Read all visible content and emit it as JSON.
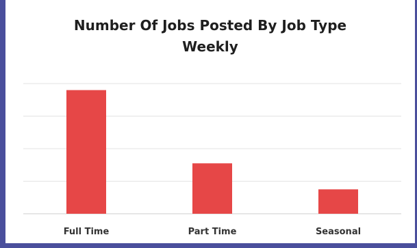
{
  "chart_data": {
    "type": "bar",
    "title_lines": [
      "Number Of Jobs Posted By Job Type",
      "Weekly"
    ],
    "categories": [
      "Full Time",
      "Part Time",
      "Seasonal"
    ],
    "values": [
      38,
      15.5,
      7.5
    ],
    "ylim": [
      0,
      40
    ],
    "grid": true,
    "legend": "none",
    "bar_color": "#e64747",
    "grid_color": "#e3e3e3",
    "axis_color": "#cccccc"
  }
}
